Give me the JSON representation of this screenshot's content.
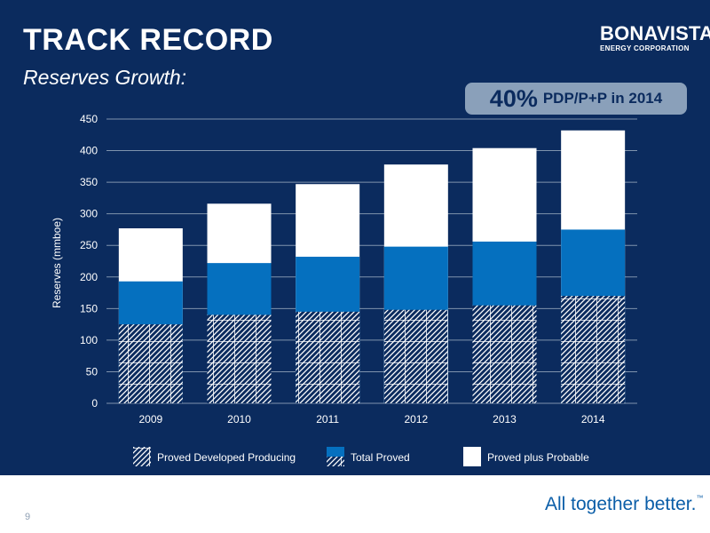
{
  "slide": {
    "title": "TRACK RECORD",
    "subtitle": "Reserves Growth:",
    "page_number": "9",
    "tagline": "All together better.",
    "tagline_mark": "™"
  },
  "logo": {
    "name": "BONAVISTA",
    "subname": "ENERGY CORPORATION"
  },
  "callout": {
    "percent": "40%",
    "text": "PDP/P+P in 2014"
  },
  "chart_data": {
    "type": "bar",
    "stacked": false,
    "overlapping": true,
    "categories": [
      "2009",
      "2010",
      "2011",
      "2012",
      "2013",
      "2014"
    ],
    "series": [
      {
        "name": "Proved Developed Producing",
        "values": [
          125,
          140,
          145,
          148,
          155,
          170
        ],
        "pattern": "hatched"
      },
      {
        "name": "Total Proved",
        "values": [
          193,
          222,
          232,
          248,
          256,
          275
        ],
        "color": "#0570bf"
      },
      {
        "name": "Proved plus Probable",
        "values": [
          277,
          316,
          347,
          378,
          404,
          432
        ],
        "color": "#ffffff"
      }
    ],
    "ylabel": "Reserves (mmboe)",
    "xlabel": "",
    "ylim": [
      0,
      450
    ],
    "yticks": [
      0,
      50,
      100,
      150,
      200,
      250,
      300,
      350,
      400,
      450
    ],
    "grid": true,
    "legend_position": "bottom",
    "colors": {
      "background": "#0b2b5e",
      "grid": "#7f93ad",
      "text": "#ffffff"
    }
  }
}
